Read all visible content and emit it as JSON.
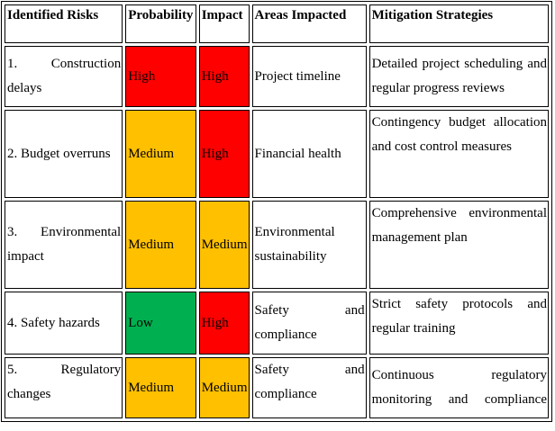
{
  "headers": [
    "Identified Risks",
    "Probability",
    "Impact",
    "Areas Impacted",
    "Mitigation Strategies"
  ],
  "colors": {
    "High": "#ff0000",
    "Medium": "#ffc000",
    "Low": "#00b050"
  },
  "rows": [
    {
      "risk": "1. Construction delays",
      "probability": "High",
      "impact": "High",
      "area": "Project timeline",
      "mitigation": "Detailed project scheduling and regular progress reviews"
    },
    {
      "risk": "2. Budget overruns",
      "probability": "Medium",
      "impact": "High",
      "area": "Financial health",
      "mitigation": "Contingency budget allocation and cost control measures"
    },
    {
      "risk": "3. Environmental impact",
      "probability": "Medium",
      "impact": "Medium",
      "area": "Environmental sustainability",
      "mitigation": "Comprehensive environmental management plan"
    },
    {
      "risk": "4. Safety hazards",
      "probability": "Low",
      "impact": "High",
      "area": "Safety and compliance",
      "mitigation": "Strict safety protocols and regular training"
    },
    {
      "risk": "5. Regulatory changes",
      "probability": "Medium",
      "impact": "Medium",
      "area": "Safety and compliance",
      "mitigation": "Continuous regulatory monitoring and compliance"
    }
  ]
}
